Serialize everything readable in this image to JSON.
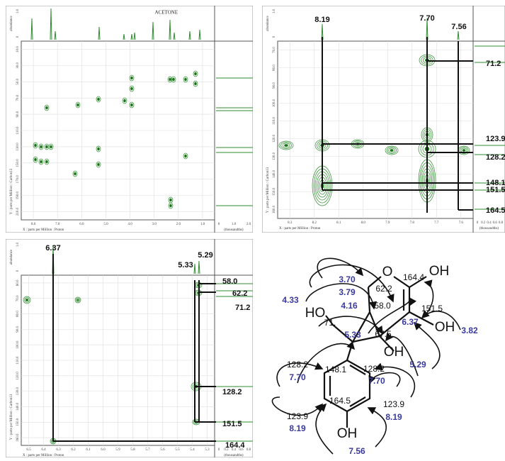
{
  "panels": [
    {
      "top_label": "ACETONE",
      "abundance_label": "abundance",
      "abundance_ticks": [
        "1.0",
        "0"
      ],
      "x_axis_title": "X : parts per Million : Proton",
      "y_axis_title": "Y : parts per Million : Carbon13",
      "side_label": "(thousandths)",
      "x_ticks": [
        "8.0",
        "7.0",
        "6.0",
        "5.0",
        "4.0",
        "3.0",
        "2.0",
        "1.0"
      ],
      "y_ticks": [
        "10.0",
        "30.0",
        "50.0",
        "70.0",
        "90.0",
        "110.0",
        "130.0",
        "150.0",
        "170.0",
        "190.0",
        "210.0"
      ],
      "side_ticks": [
        "0",
        "1.0",
        "2.0"
      ]
    },
    {
      "abundance_label": "abundance",
      "abundance_ticks": [
        "1.0",
        "0"
      ],
      "x_axis_title": "X : parts per Million : Proton",
      "y_axis_title": "Y : parts per Million : Carbon13",
      "side_label": "(thousandths)",
      "x_ticks": [
        "8.3",
        "8.2",
        "8.1",
        "8.0",
        "7.9",
        "7.8",
        "7.7",
        "7.6"
      ],
      "y_ticks": [
        "70.0",
        "80.0",
        "90.0",
        "100.0",
        "110.0",
        "120.0",
        "130.0",
        "140.0",
        "150.0",
        "160.0"
      ],
      "side_ticks": [
        "0",
        "0.2",
        "0.4",
        "0.6",
        "0.8"
      ],
      "peak_labels_top": [
        "8.19",
        "7.70",
        "7.56"
      ],
      "peak_labels_right": [
        "71.2",
        "123.9",
        "128.2",
        "148.1",
        "151.5",
        "164.5"
      ]
    },
    {
      "abundance_label": "abundance",
      "abundance_ticks": [
        "1.0",
        "0"
      ],
      "x_axis_title": "X : parts per Million : Proton",
      "y_axis_title": "Y : parts per Million : Carbon13",
      "side_label": "(thousandths)",
      "x_ticks": [
        "6.5",
        "6.4",
        "6.3",
        "6.2",
        "6.1",
        "6.0",
        "5.9",
        "5.8",
        "5.7",
        "5.6",
        "5.5",
        "5.4",
        "5.3"
      ],
      "y_ticks": [
        "60.0",
        "70.0",
        "80.0",
        "90.0",
        "100.0",
        "110.0",
        "120.0",
        "130.0",
        "140.0",
        "150.0",
        "160.0"
      ],
      "side_ticks": [
        "0",
        "0.2",
        "0.4",
        "0.6",
        "0.8"
      ],
      "peak_labels_top": [
        "6.37",
        "5.33",
        "5.29"
      ],
      "peak_labels_right": [
        "58.0",
        "62.2",
        "71.2",
        "128.2",
        "151.5",
        "164.4"
      ]
    }
  ],
  "structure": {
    "atoms": [
      "O",
      "OH",
      "HO",
      "OH",
      "OH",
      "OH"
    ],
    "carbon_shifts": [
      "164.4",
      "62.2",
      "58.0",
      "151.5",
      "71.",
      "67.5",
      "148.1",
      "128.2",
      "128.2",
      "123.9",
      "123.9",
      "164.5"
    ],
    "proton_shifts": [
      "3.70",
      "3.79",
      "4.16",
      "4.33",
      "5.33",
      "6.37",
      "3.82",
      "5.29",
      "7.70",
      "8.19",
      "7.70",
      "8.19",
      "7.56"
    ]
  }
}
